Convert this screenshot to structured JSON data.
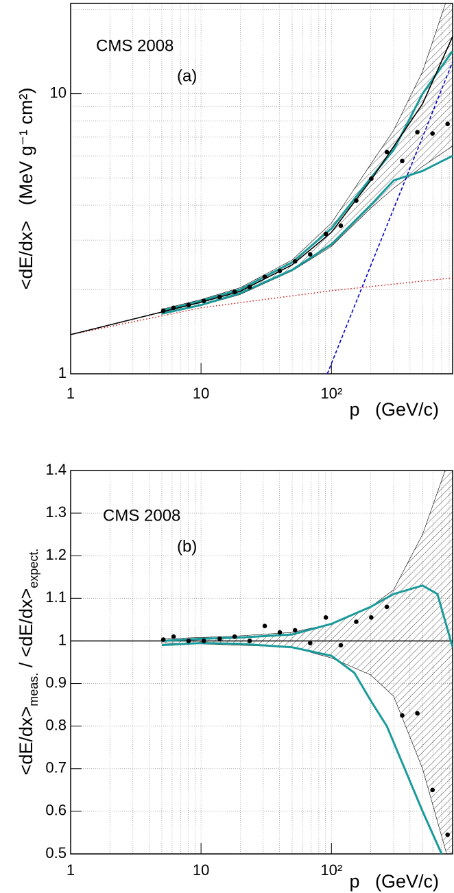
{
  "chart_data": [
    {
      "type": "line",
      "xlog": true,
      "ylog": true,
      "grid": true,
      "xlim": [
        1,
        850
      ],
      "ylim": [
        1,
        21
      ],
      "xticks": [
        1,
        10,
        {
          "value": 100,
          "label": "10²"
        }
      ],
      "yticks": [
        1,
        10
      ],
      "x_label": "p   (GeV/c)",
      "y_label": "<dE/dx>   (MeV g⁻¹ cm²)",
      "annotations": [
        "CMS 2008",
        "(a)"
      ],
      "band": {
        "x": [
          5,
          10,
          20,
          50,
          100,
          200,
          300,
          500,
          850
        ],
        "low": [
          1.63,
          1.75,
          1.92,
          2.33,
          2.85,
          3.9,
          4.6,
          5.5,
          6.5
        ],
        "high": [
          1.7,
          1.84,
          2.03,
          2.55,
          3.45,
          5.6,
          7.4,
          12,
          25
        ],
        "color": "#000000"
      },
      "series": [
        {
          "color": "#cc0000",
          "style": "dotted",
          "x": [
            1,
            10,
            100,
            850
          ],
          "values": [
            1.38,
            1.72,
            1.98,
            2.2
          ]
        },
        {
          "color": "#0000cc",
          "style": "dashed",
          "x": [
            93,
            200,
            500,
            850
          ],
          "values": [
            1,
            2.43,
            7.0,
            13
          ]
        },
        {
          "color": "#1a9a9a",
          "style": "thick",
          "x": [
            5,
            10,
            20,
            50,
            100,
            200,
            300,
            500,
            850
          ],
          "values": [
            1.68,
            1.82,
            2.0,
            2.5,
            3.3,
            5.0,
            6.3,
            10,
            14.2
          ]
        },
        {
          "color": "#1a9a9a",
          "style": "thick",
          "x": [
            5,
            10,
            20,
            50,
            100,
            200,
            300,
            500,
            850
          ],
          "values": [
            1.64,
            1.76,
            1.94,
            2.35,
            2.9,
            4.0,
            4.9,
            5.3,
            6.0
          ]
        },
        {
          "color": "#000000",
          "style": "solid",
          "x": [
            1,
            10,
            20,
            50,
            100,
            200,
            500,
            850
          ],
          "values": [
            1.38,
            1.8,
            1.97,
            2.45,
            3.2,
            4.9,
            9.2,
            16
          ]
        }
      ],
      "points": {
        "color": "#000000",
        "x": [
          5.14,
          6.16,
          8.03,
          10.5,
          13.9,
          18.1,
          23.6,
          30.8,
          40.2,
          52.6,
          68.7,
          90.6,
          118,
          155,
          202,
          266,
          349,
          456,
          596,
          778
        ],
        "values": [
          1.68,
          1.72,
          1.76,
          1.82,
          1.88,
          1.96,
          2.04,
          2.22,
          2.33,
          2.52,
          2.67,
          3.16,
          3.38,
          4.15,
          4.97,
          6.19,
          5.75,
          7.29,
          7.21,
          7.8
        ]
      }
    },
    {
      "type": "line",
      "xlog": true,
      "ylog": false,
      "grid": true,
      "xlim": [
        1,
        850
      ],
      "ylim": [
        0.5,
        1.4
      ],
      "xticks": [
        1,
        10,
        {
          "value": 100,
          "label": "10²"
        }
      ],
      "yticks": [
        0.5,
        0.6,
        0.7,
        0.8,
        0.9,
        1,
        1.1,
        1.2,
        1.3,
        1.4
      ],
      "x_label": "p   (GeV/c)",
      "y_label": [
        "<dE/dx>",
        "meas.",
        " / <dE/dx>",
        "expect."
      ],
      "annotations": [
        "CMS 2008",
        "(b)"
      ],
      "hline": 1,
      "band": {
        "x": [
          5,
          10,
          20,
          50,
          100,
          200,
          300,
          500,
          850
        ],
        "low": [
          0.995,
          0.993,
          0.99,
          0.985,
          0.96,
          0.92,
          0.87,
          0.7,
          0.45
        ],
        "high": [
          1.005,
          1.008,
          1.012,
          1.02,
          1.04,
          1.08,
          1.12,
          1.25,
          1.45
        ],
        "color": "#000000"
      },
      "series": [
        {
          "color": "#1a9a9a",
          "style": "thick",
          "x": [
            5,
            10,
            20,
            50,
            100,
            200,
            300,
            500,
            650,
            850
          ],
          "values": [
            1.0,
            1.005,
            1.008,
            1.015,
            1.04,
            1.08,
            1.11,
            1.13,
            1.11,
            0.985
          ]
        },
        {
          "color": "#1a9a9a",
          "style": "thick",
          "x": [
            5,
            10,
            20,
            50,
            100,
            150,
            200,
            266,
            500,
            700
          ],
          "values": [
            0.99,
            0.995,
            0.993,
            0.985,
            0.965,
            0.925,
            0.86,
            0.8,
            0.6,
            0.5
          ]
        }
      ],
      "points": {
        "color": "#000000",
        "x": [
          5.14,
          6.16,
          8.03,
          10.5,
          13.9,
          18.1,
          23.6,
          30.8,
          40.2,
          52.6,
          68.7,
          90.6,
          118,
          155,
          202,
          266,
          349,
          456,
          596,
          778
        ],
        "values": [
          1.003,
          1.01,
          1.0,
          1.0,
          1.005,
          1.01,
          1.0,
          1.035,
          1.02,
          1.025,
          0.995,
          1.055,
          0.99,
          1.045,
          1.055,
          1.08,
          0.825,
          0.83,
          0.65,
          0.545
        ]
      }
    }
  ]
}
